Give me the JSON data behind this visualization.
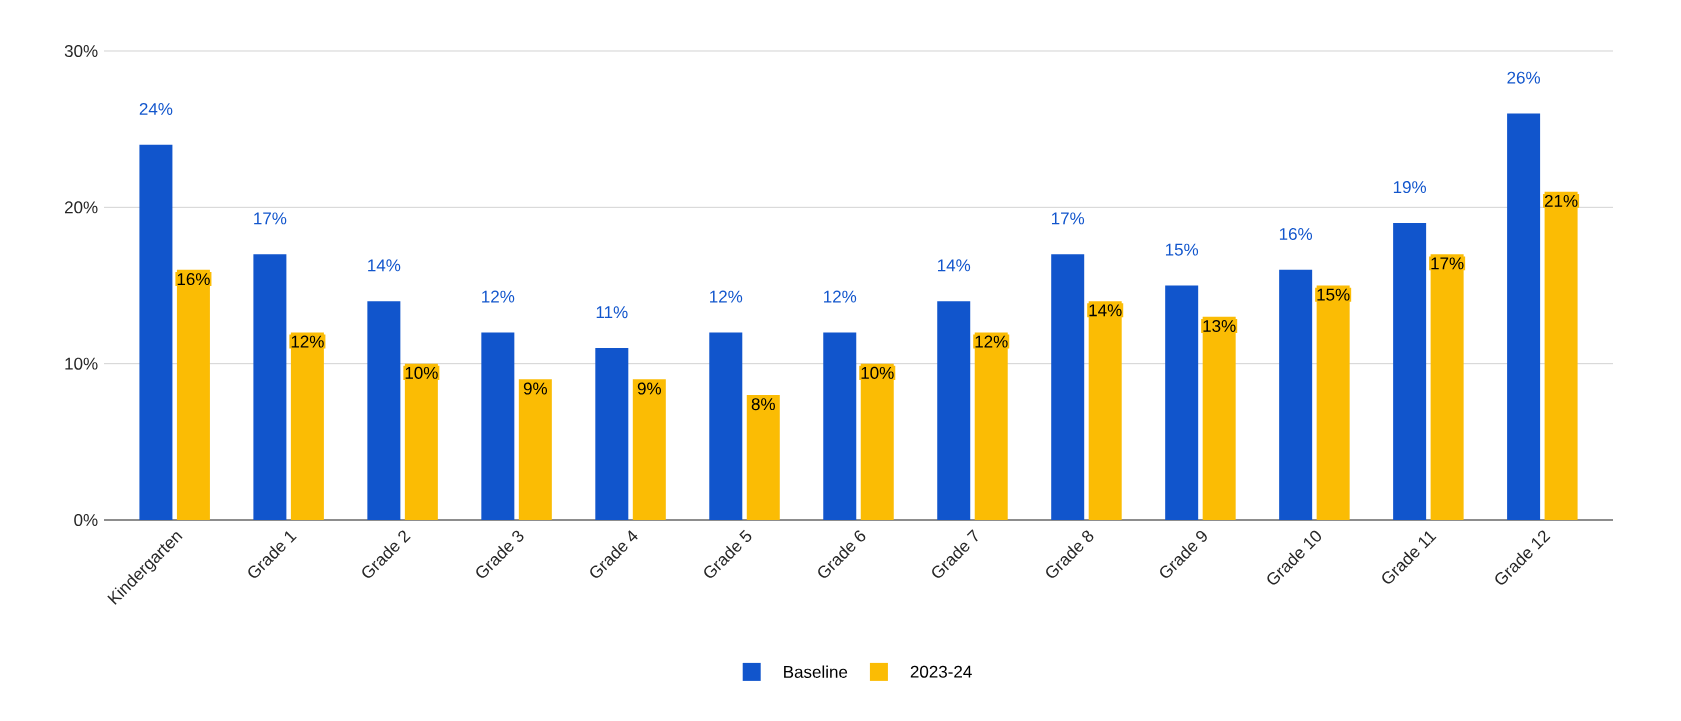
{
  "chart_data": {
    "type": "bar",
    "categories": [
      "Kindergarten",
      "Grade 1",
      "Grade 2",
      "Grade 3",
      "Grade 4",
      "Grade 5",
      "Grade 6",
      "Grade 7",
      "Grade 8",
      "Grade 9",
      "Grade 10",
      "Grade 11",
      "Grade 12"
    ],
    "series": [
      {
        "name": "Baseline",
        "color": "#1155cc",
        "values": [
          24,
          17,
          14,
          12,
          11,
          12,
          12,
          14,
          17,
          15,
          16,
          19,
          26
        ],
        "value_labels": [
          "24%",
          "17%",
          "14%",
          "12%",
          "11%",
          "12%",
          "12%",
          "14%",
          "17%",
          "15%",
          "16%",
          "19%",
          "26%"
        ]
      },
      {
        "name": "2023-24",
        "color": "#fbbc04",
        "values": [
          16,
          12,
          10,
          9,
          9,
          8,
          10,
          12,
          14,
          13,
          15,
          17,
          21
        ],
        "value_labels": [
          "16%",
          "12%",
          "10%",
          "9%",
          "9%",
          "8%",
          "10%",
          "12%",
          "14%",
          "13%",
          "15%",
          "17%",
          "21%"
        ]
      }
    ],
    "ylim": [
      0,
      30
    ],
    "yticks": [
      {
        "value": 0,
        "label": "0%"
      },
      {
        "value": 10,
        "label": "10%"
      },
      {
        "value": 20,
        "label": "20%"
      },
      {
        "value": 30,
        "label": "30%"
      }
    ],
    "grid": "y",
    "legend": "bottom"
  }
}
